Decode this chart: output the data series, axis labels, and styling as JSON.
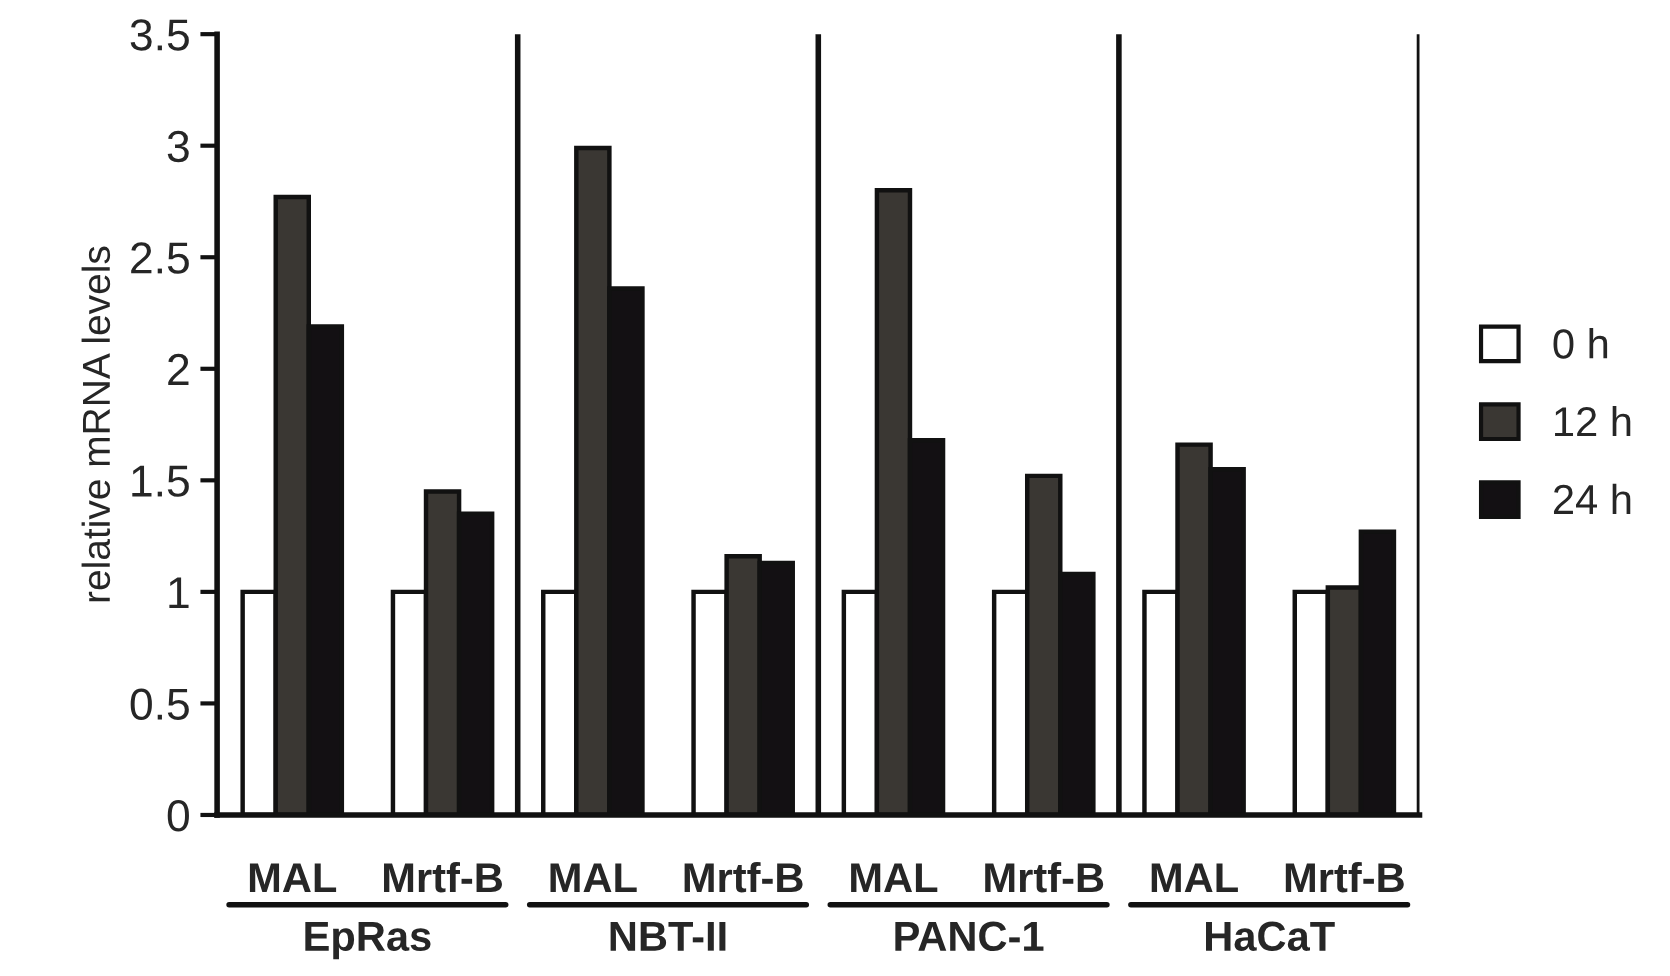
{
  "chart_data": {
    "type": "bar",
    "ylabel": "relative mRNA levels",
    "categories": [
      "MAL",
      "Mrtf-B",
      "MAL",
      "Mrtf-B",
      "MAL",
      "Mrtf-B",
      "MAL",
      "Mrtf-B"
    ],
    "series": [
      {
        "name": "0 h",
        "color": "#ffffff",
        "values": [
          1,
          1,
          1,
          1,
          1,
          1,
          1,
          1
        ]
      },
      {
        "name": "12 h",
        "color": "#3a3733",
        "values": [
          2.77,
          1.45,
          2.99,
          1.16,
          2.8,
          1.52,
          1.66,
          1.02
        ]
      },
      {
        "name": "24 h",
        "color": "#131013",
        "values": [
          2.19,
          1.35,
          2.36,
          1.13,
          1.68,
          1.08,
          1.55,
          1.27
        ]
      }
    ],
    "annotations": [
      "EpRas",
      "NBT-II",
      "PANC-1",
      "HaCaT"
    ],
    "ylim": [
      0,
      3.5
    ],
    "yticks": [
      0,
      0.5,
      1,
      1.5,
      2,
      2.5,
      3,
      3.5
    ],
    "legend": "right",
    "grid": false
  }
}
